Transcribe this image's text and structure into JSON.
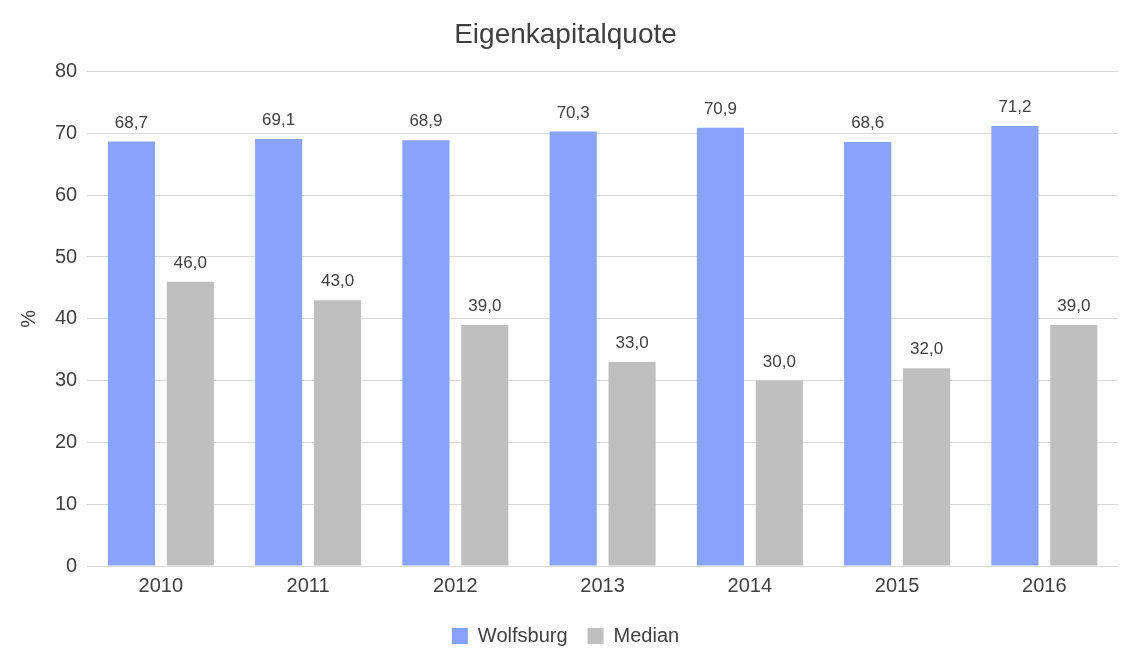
{
  "chart_data": {
    "type": "bar",
    "title": "Eigenkapitalquote",
    "ylabel": "%",
    "categories": [
      "2010",
      "2011",
      "2012",
      "2013",
      "2014",
      "2015",
      "2016"
    ],
    "series": [
      {
        "name": "Wolfsburg",
        "color": "#88a3f9",
        "values": [
          68.7,
          69.1,
          68.9,
          70.3,
          70.9,
          68.6,
          71.2
        ],
        "value_labels": [
          "68,7",
          "69,1",
          "68,9",
          "70,3",
          "70,9",
          "68,6",
          "71,2"
        ]
      },
      {
        "name": "Median",
        "color": "#bfbfbf",
        "values": [
          46.0,
          43.0,
          39.0,
          33.0,
          30.0,
          32.0,
          39.0
        ],
        "value_labels": [
          "46,0",
          "43,0",
          "39,0",
          "33,0",
          "30,0",
          "32,0",
          "39,0"
        ]
      }
    ],
    "ylim": [
      0,
      80
    ],
    "yticks": [
      0,
      10,
      20,
      30,
      40,
      50,
      60,
      70,
      80
    ],
    "grid": "y",
    "legend": "bottom"
  }
}
